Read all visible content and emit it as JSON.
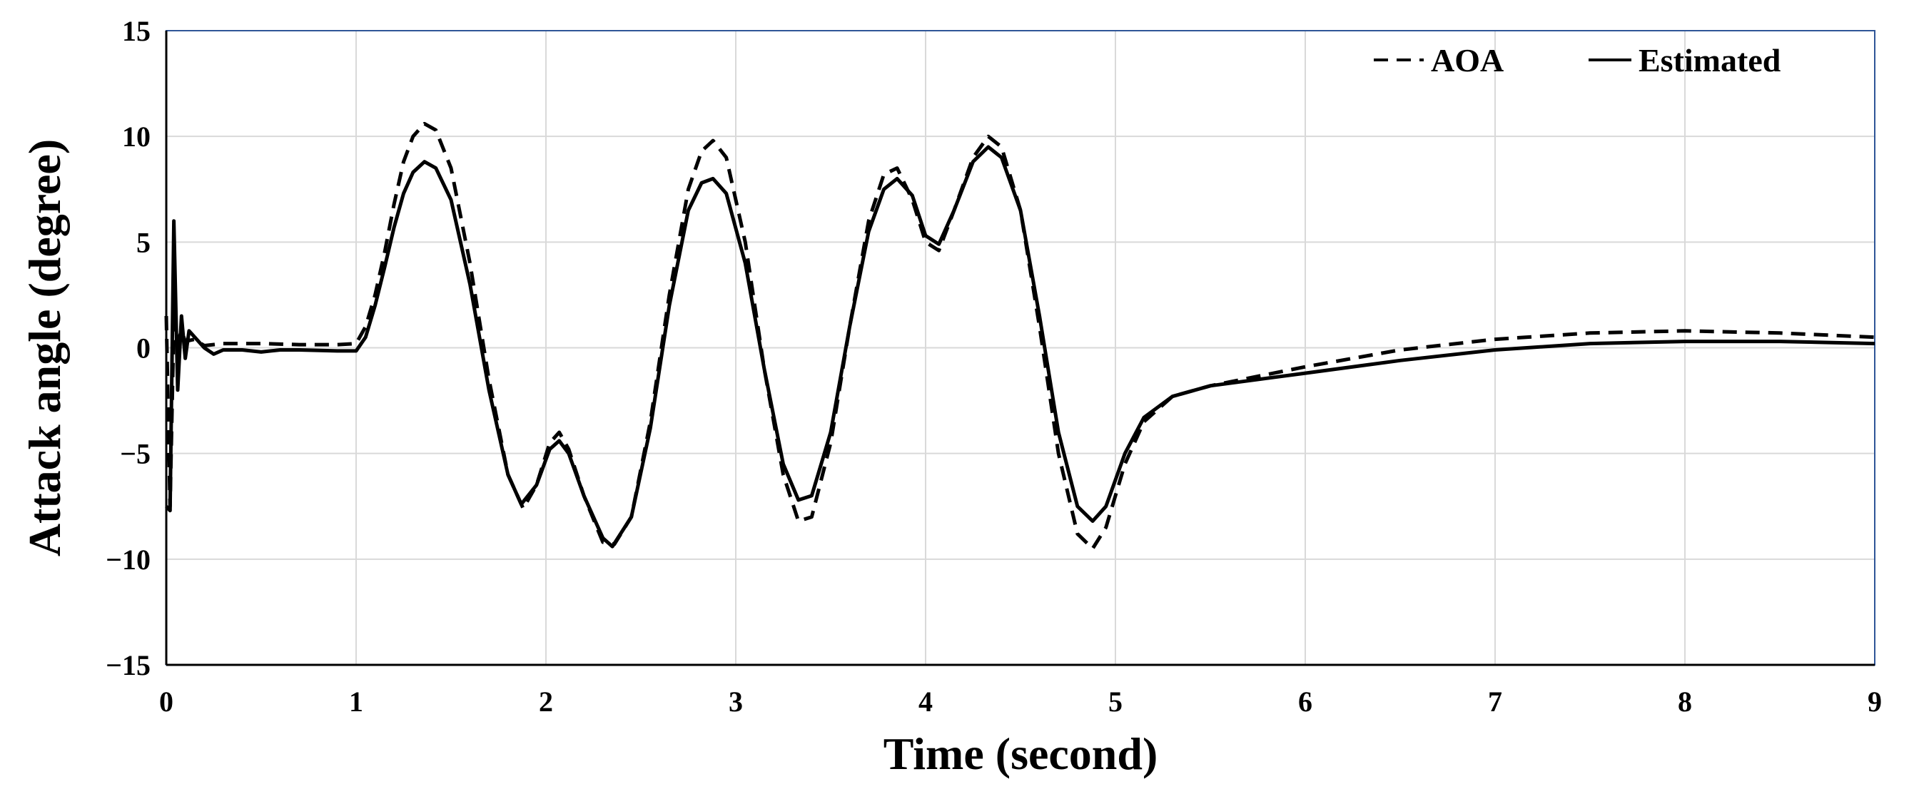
{
  "chart_data": {
    "type": "line",
    "title": "",
    "xlabel": "Time (second)",
    "ylabel": "Attack angle (degree)",
    "xlim": [
      0,
      9
    ],
    "ylim": [
      -15,
      15
    ],
    "x_ticks": [
      0,
      1,
      2,
      3,
      4,
      5,
      6,
      7,
      8,
      9
    ],
    "x_tick_labels": [
      "0",
      "1",
      "2",
      "3",
      "4",
      "5",
      "6",
      "7",
      "8",
      "9"
    ],
    "y_ticks": [
      -15,
      -10,
      -5,
      0,
      5,
      10,
      15
    ],
    "y_tick_labels": [
      "−15",
      "−10",
      "−5",
      "0",
      "5",
      "10",
      "15"
    ],
    "grid": true,
    "legend_position": "top-right",
    "series": [
      {
        "name": "AOA",
        "style": "dashed",
        "color": "#000000",
        "points": [
          [
            0,
            1.5
          ],
          [
            0.02,
            -7.5
          ],
          [
            0.04,
            1.2
          ],
          [
            0.06,
            0.3
          ],
          [
            0.08,
            0.8
          ],
          [
            0.1,
            0.3
          ],
          [
            0.15,
            0.4
          ],
          [
            0.2,
            0.1
          ],
          [
            0.3,
            0.2
          ],
          [
            0.5,
            0.2
          ],
          [
            0.7,
            0.15
          ],
          [
            0.9,
            0.15
          ],
          [
            1.0,
            0.2
          ],
          [
            1.05,
            1.0
          ],
          [
            1.1,
            2.5
          ],
          [
            1.15,
            4.5
          ],
          [
            1.2,
            6.8
          ],
          [
            1.25,
            8.8
          ],
          [
            1.3,
            10.0
          ],
          [
            1.36,
            10.6
          ],
          [
            1.42,
            10.3
          ],
          [
            1.5,
            8.5
          ],
          [
            1.6,
            4.0
          ],
          [
            1.7,
            -1.5
          ],
          [
            1.8,
            -6.0
          ],
          [
            1.88,
            -7.6
          ],
          [
            1.95,
            -6.5
          ],
          [
            2.02,
            -4.5
          ],
          [
            2.07,
            -4.0
          ],
          [
            2.12,
            -4.8
          ],
          [
            2.2,
            -7.0
          ],
          [
            2.3,
            -9.2
          ],
          [
            2.36,
            -9.3
          ],
          [
            2.45,
            -8.0
          ],
          [
            2.55,
            -3.5
          ],
          [
            2.65,
            2.5
          ],
          [
            2.75,
            7.5
          ],
          [
            2.82,
            9.3
          ],
          [
            2.88,
            9.8
          ],
          [
            2.95,
            9.0
          ],
          [
            3.05,
            5.0
          ],
          [
            3.15,
            -1.0
          ],
          [
            3.25,
            -6.0
          ],
          [
            3.33,
            -8.2
          ],
          [
            3.4,
            -8.0
          ],
          [
            3.5,
            -4.5
          ],
          [
            3.6,
            1.0
          ],
          [
            3.7,
            6.0
          ],
          [
            3.78,
            8.2
          ],
          [
            3.85,
            8.5
          ],
          [
            3.93,
            7.0
          ],
          [
            4.0,
            5.0
          ],
          [
            4.07,
            4.6
          ],
          [
            4.15,
            6.5
          ],
          [
            4.25,
            9.0
          ],
          [
            4.33,
            10.0
          ],
          [
            4.4,
            9.5
          ],
          [
            4.5,
            6.5
          ],
          [
            4.6,
            1.0
          ],
          [
            4.7,
            -5.0
          ],
          [
            4.8,
            -8.8
          ],
          [
            4.88,
            -9.5
          ],
          [
            4.95,
            -8.5
          ],
          [
            5.05,
            -5.5
          ],
          [
            5.15,
            -3.5
          ],
          [
            5.3,
            -2.3
          ],
          [
            5.5,
            -1.8
          ],
          [
            6.0,
            -0.9
          ],
          [
            6.5,
            -0.1
          ],
          [
            7.0,
            0.4
          ],
          [
            7.5,
            0.7
          ],
          [
            8.0,
            0.8
          ],
          [
            8.5,
            0.7
          ],
          [
            9.0,
            0.5
          ]
        ]
      },
      {
        "name": "Estimated",
        "style": "solid",
        "color": "#000000",
        "points": [
          [
            0,
            -7.5
          ],
          [
            0.02,
            -7.7
          ],
          [
            0.04,
            6.0
          ],
          [
            0.06,
            -2.0
          ],
          [
            0.08,
            1.5
          ],
          [
            0.1,
            -0.5
          ],
          [
            0.12,
            0.8
          ],
          [
            0.15,
            0.5
          ],
          [
            0.2,
            0.0
          ],
          [
            0.25,
            -0.3
          ],
          [
            0.3,
            -0.1
          ],
          [
            0.4,
            -0.1
          ],
          [
            0.5,
            -0.2
          ],
          [
            0.6,
            -0.1
          ],
          [
            0.7,
            -0.1
          ],
          [
            0.9,
            -0.15
          ],
          [
            1.0,
            -0.15
          ],
          [
            1.05,
            0.5
          ],
          [
            1.1,
            2.0
          ],
          [
            1.15,
            3.8
          ],
          [
            1.2,
            5.7
          ],
          [
            1.25,
            7.3
          ],
          [
            1.3,
            8.3
          ],
          [
            1.36,
            8.8
          ],
          [
            1.42,
            8.5
          ],
          [
            1.5,
            7.0
          ],
          [
            1.6,
            3.0
          ],
          [
            1.7,
            -2.0
          ],
          [
            1.8,
            -6.0
          ],
          [
            1.87,
            -7.4
          ],
          [
            1.95,
            -6.5
          ],
          [
            2.02,
            -4.8
          ],
          [
            2.07,
            -4.4
          ],
          [
            2.12,
            -5.0
          ],
          [
            2.2,
            -7.0
          ],
          [
            2.3,
            -9.0
          ],
          [
            2.35,
            -9.4
          ],
          [
            2.45,
            -8.0
          ],
          [
            2.55,
            -3.8
          ],
          [
            2.65,
            2.0
          ],
          [
            2.75,
            6.5
          ],
          [
            2.82,
            7.8
          ],
          [
            2.88,
            8.0
          ],
          [
            2.95,
            7.3
          ],
          [
            3.05,
            4.0
          ],
          [
            3.15,
            -1.0
          ],
          [
            3.25,
            -5.5
          ],
          [
            3.33,
            -7.2
          ],
          [
            3.4,
            -7.0
          ],
          [
            3.5,
            -4.0
          ],
          [
            3.6,
            1.0
          ],
          [
            3.7,
            5.5
          ],
          [
            3.78,
            7.5
          ],
          [
            3.85,
            8.0
          ],
          [
            3.93,
            7.2
          ],
          [
            4.0,
            5.3
          ],
          [
            4.07,
            4.9
          ],
          [
            4.15,
            6.5
          ],
          [
            4.25,
            8.8
          ],
          [
            4.33,
            9.5
          ],
          [
            4.4,
            9.0
          ],
          [
            4.5,
            6.5
          ],
          [
            4.6,
            1.5
          ],
          [
            4.7,
            -4.0
          ],
          [
            4.8,
            -7.5
          ],
          [
            4.88,
            -8.2
          ],
          [
            4.95,
            -7.5
          ],
          [
            5.05,
            -5.0
          ],
          [
            5.15,
            -3.3
          ],
          [
            5.3,
            -2.3
          ],
          [
            5.5,
            -1.8
          ],
          [
            6.0,
            -1.2
          ],
          [
            6.5,
            -0.6
          ],
          [
            7.0,
            -0.1
          ],
          [
            7.5,
            0.2
          ],
          [
            8.0,
            0.3
          ],
          [
            8.5,
            0.3
          ],
          [
            9.0,
            0.2
          ]
        ]
      }
    ]
  }
}
